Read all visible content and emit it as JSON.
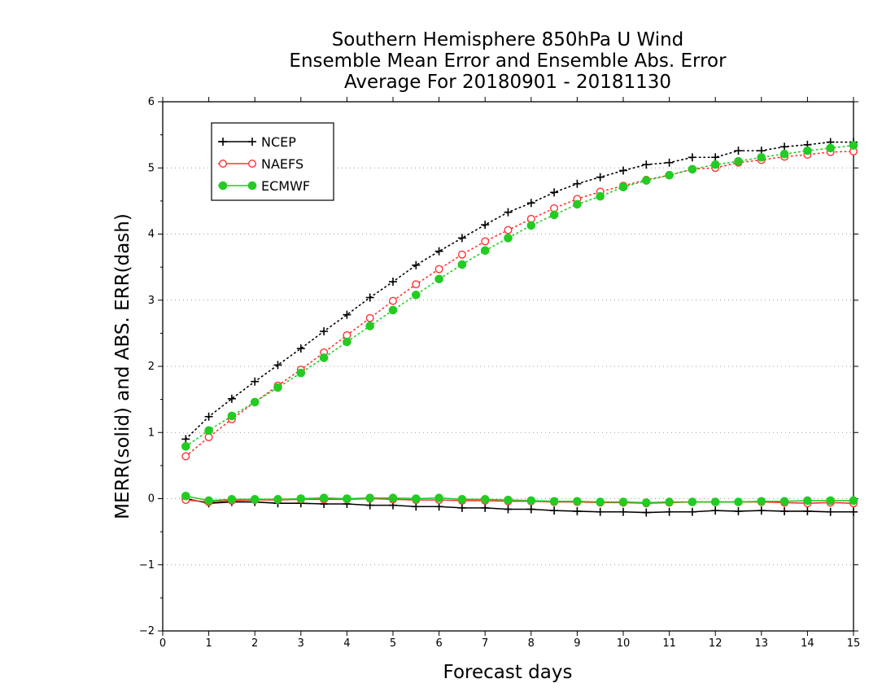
{
  "chart_data": {
    "type": "line",
    "title": [
      "Southern Hemisphere 850hPa U Wind",
      "Ensemble Mean Error and Ensemble Abs. Error",
      "Average For 20180901 - 20181130"
    ],
    "xlabel": "Forecast days",
    "ylabel": "MERR(solid) and ABS. ERR(dash)",
    "xlim": [
      0,
      15
    ],
    "ylim": [
      -2,
      6
    ],
    "xticks": [
      0,
      1,
      2,
      3,
      4,
      5,
      6,
      7,
      8,
      9,
      10,
      11,
      12,
      13,
      14,
      15
    ],
    "yticks": [
      -2,
      -1,
      0,
      1,
      2,
      3,
      4,
      5,
      6
    ],
    "x": [
      0.5,
      1.0,
      1.5,
      2.0,
      2.5,
      3.0,
      3.5,
      4.0,
      4.5,
      5.0,
      5.5,
      6.0,
      6.5,
      7.0,
      7.5,
      8.0,
      8.5,
      9.0,
      9.5,
      10.0,
      10.5,
      11.0,
      11.5,
      12.0,
      12.5,
      13.0,
      13.5,
      14.0,
      14.5,
      15.0
    ],
    "grid": "horizontal dotted",
    "legend_position": "top-left",
    "series": [
      {
        "name": "NCEP",
        "color": "#000000",
        "marker": "plus",
        "mean_error": [
          0.0,
          -0.07,
          -0.05,
          -0.05,
          -0.07,
          -0.07,
          -0.08,
          -0.08,
          -0.1,
          -0.1,
          -0.12,
          -0.12,
          -0.14,
          -0.14,
          -0.16,
          -0.16,
          -0.18,
          -0.19,
          -0.2,
          -0.2,
          -0.21,
          -0.2,
          -0.2,
          -0.18,
          -0.19,
          -0.18,
          -0.19,
          -0.19,
          -0.2,
          -0.2
        ],
        "abs_error": [
          0.9,
          1.24,
          1.51,
          1.77,
          2.02,
          2.27,
          2.53,
          2.78,
          3.04,
          3.28,
          3.53,
          3.74,
          3.94,
          4.14,
          4.33,
          4.47,
          4.63,
          4.76,
          4.86,
          4.96,
          5.05,
          5.08,
          5.16,
          5.16,
          5.26,
          5.26,
          5.32,
          5.35,
          5.39,
          5.39
        ]
      },
      {
        "name": "NAEFS",
        "color": "#ff3333",
        "marker": "open-circle",
        "mean_error": [
          -0.02,
          -0.05,
          -0.03,
          -0.02,
          -0.02,
          -0.01,
          -0.01,
          -0.01,
          0.0,
          -0.01,
          -0.02,
          -0.02,
          -0.03,
          -0.03,
          -0.04,
          -0.04,
          -0.05,
          -0.05,
          -0.06,
          -0.06,
          -0.07,
          -0.06,
          -0.05,
          -0.05,
          -0.05,
          -0.05,
          -0.06,
          -0.07,
          -0.06,
          -0.07
        ],
        "abs_error": [
          0.64,
          0.93,
          1.2,
          1.46,
          1.71,
          1.95,
          2.21,
          2.47,
          2.73,
          2.99,
          3.24,
          3.47,
          3.69,
          3.89,
          4.06,
          4.23,
          4.39,
          4.53,
          4.64,
          4.73,
          4.82,
          4.89,
          4.98,
          5.0,
          5.08,
          5.12,
          5.17,
          5.2,
          5.24,
          5.25
        ]
      },
      {
        "name": "ECMWF",
        "color": "#22cc22",
        "marker": "filled-circle",
        "mean_error": [
          0.04,
          -0.03,
          -0.01,
          -0.01,
          -0.01,
          0.0,
          0.01,
          0.0,
          0.01,
          0.01,
          0.0,
          0.01,
          -0.01,
          -0.01,
          -0.02,
          -0.03,
          -0.04,
          -0.04,
          -0.05,
          -0.05,
          -0.06,
          -0.05,
          -0.05,
          -0.05,
          -0.05,
          -0.04,
          -0.04,
          -0.03,
          -0.03,
          -0.03
        ],
        "abs_error": [
          0.79,
          1.03,
          1.25,
          1.46,
          1.68,
          1.9,
          2.13,
          2.37,
          2.61,
          2.85,
          3.08,
          3.32,
          3.54,
          3.75,
          3.94,
          4.13,
          4.29,
          4.45,
          4.57,
          4.71,
          4.81,
          4.89,
          4.98,
          5.05,
          5.1,
          5.16,
          5.21,
          5.26,
          5.3,
          5.34
        ]
      }
    ]
  }
}
